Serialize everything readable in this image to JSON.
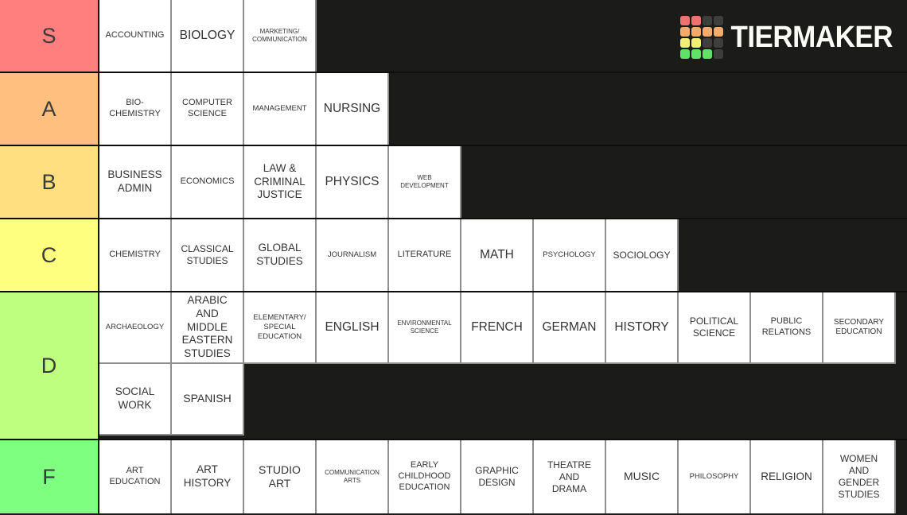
{
  "app": {
    "title": "TierMaker tier list"
  },
  "logo": {
    "text": "TIERMAKER",
    "grid": [
      [
        "#ef7170",
        "#ef7170",
        "#3e3e3c",
        "#3e3e3c"
      ],
      [
        "#f2ab6c",
        "#f2ab6c",
        "#f2ab6c",
        "#f2ab6c"
      ],
      [
        "#f3ee74",
        "#f3ee74",
        "#3e3e3c",
        "#3e3e3c"
      ],
      [
        "#5ee268",
        "#5ee268",
        "#5ee268",
        "#3e3e3c"
      ]
    ]
  },
  "colors": {
    "background": "#1b1b19",
    "row_separator": "#0d0d0b",
    "tile_background": "#ffffff",
    "tile_separator": "#8e8e8e",
    "tile_text": "#333333",
    "label_text": "#3a3a3a",
    "tier_s": "#ff7f7e",
    "tier_a": "#ffbf7f",
    "tier_b": "#ffdf80",
    "tier_c": "#ffff7f",
    "tier_d": "#bfff7f",
    "tier_f": "#7fff7f"
  },
  "tiers": [
    {
      "label": "S",
      "color": "#ff7f7e",
      "tiles": [
        {
          "label": "ACCOUNTING"
        },
        {
          "label": "BIOLOGY"
        },
        {
          "label": "MARKETING/\nCOMMUNICATION"
        }
      ]
    },
    {
      "label": "A",
      "color": "#ffbf7f",
      "tiles": [
        {
          "label": "BIO-\nCHEMISTRY"
        },
        {
          "label": "COMPUTER\nSCIENCE"
        },
        {
          "label": "MANAGEMENT"
        },
        {
          "label": "NURSING"
        }
      ]
    },
    {
      "label": "B",
      "color": "#ffdf80",
      "tiles": [
        {
          "label": "BUSINESS\nADMIN"
        },
        {
          "label": "ECONOMICS"
        },
        {
          "label": "LAW &\nCRIMINAL\nJUSTICE"
        },
        {
          "label": "PHYSICS"
        },
        {
          "label": "WEB\nDEVELOPMENT"
        }
      ]
    },
    {
      "label": "C",
      "color": "#ffff7f",
      "tiles": [
        {
          "label": "CHEMISTRY"
        },
        {
          "label": "CLASSICAL\nSTUDIES"
        },
        {
          "label": "GLOBAL\nSTUDIES"
        },
        {
          "label": "JOURNALISM"
        },
        {
          "label": "LITERATURE"
        },
        {
          "label": "MATH"
        },
        {
          "label": "PSYCHOLOGY"
        },
        {
          "label": "SOCIOLOGY"
        }
      ]
    },
    {
      "label": "D",
      "color": "#bfff7f",
      "tiles": [
        {
          "label": "ARCHAEOLOGY"
        },
        {
          "label": "ARABIC\nAND\nMIDDLE\nEASTERN\nSTUDIES"
        },
        {
          "label": "ELEMENTARY/\nSPECIAL\nEDUCATION"
        },
        {
          "label": "ENGLISH"
        },
        {
          "label": "ENVIRONMENTAL\nSCIENCE"
        },
        {
          "label": "FRENCH"
        },
        {
          "label": "GERMAN"
        },
        {
          "label": "HISTORY"
        },
        {
          "label": "POLITICAL\nSCIENCE"
        },
        {
          "label": "PUBLIC\nRELATIONS"
        },
        {
          "label": "SECONDARY\nEDUCATION"
        },
        {
          "label": "SOCIAL\nWORK"
        },
        {
          "label": "SPANISH"
        }
      ]
    },
    {
      "label": "F",
      "color": "#7fff7f",
      "tiles": [
        {
          "label": "ART\nEDUCATION"
        },
        {
          "label": "ART\nHISTORY"
        },
        {
          "label": "STUDIO\nART"
        },
        {
          "label": "COMMUNICATION\nARTS"
        },
        {
          "label": "EARLY\nCHILDHOOD\nEDUCATION"
        },
        {
          "label": "GRAPHIC\nDESIGN"
        },
        {
          "label": "THEATRE\nAND\nDRAMA"
        },
        {
          "label": "MUSIC"
        },
        {
          "label": "PHILOSOPHY"
        },
        {
          "label": "RELIGION"
        },
        {
          "label": "WOMEN\nAND\nGENDER\nSTUDIES"
        }
      ]
    }
  ]
}
